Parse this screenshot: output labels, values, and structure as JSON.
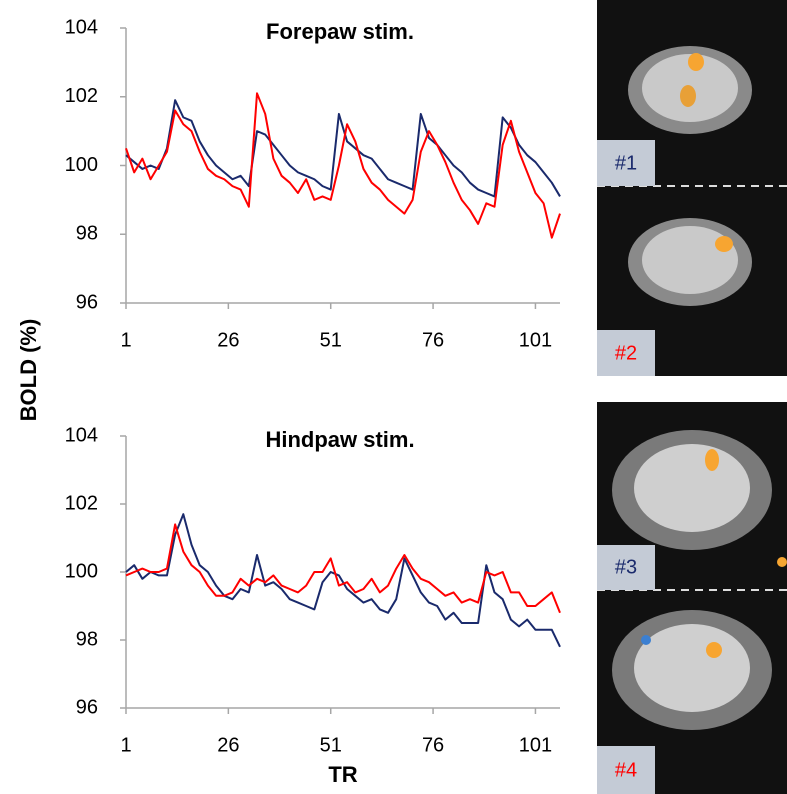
{
  "ylabel": "BOLD (%)",
  "xlabel": "TR",
  "chart_data": [
    {
      "type": "line",
      "title": "Forepaw stim.",
      "x": [
        1,
        3,
        5,
        7,
        9,
        11,
        13,
        15,
        17,
        19,
        21,
        23,
        25,
        27,
        29,
        31,
        33,
        35,
        37,
        39,
        41,
        43,
        45,
        47,
        49,
        51,
        53,
        55,
        57,
        59,
        61,
        63,
        65,
        67,
        69,
        71,
        73,
        75,
        77,
        79,
        81,
        83,
        85,
        87,
        89,
        91,
        93,
        95,
        97,
        99,
        101,
        103,
        105,
        107
      ],
      "series": [
        {
          "color": "#1a2a6c",
          "values": [
            100.3,
            100.1,
            99.9,
            100.0,
            99.9,
            100.5,
            101.9,
            101.4,
            101.3,
            100.7,
            100.3,
            100.0,
            99.8,
            99.6,
            99.7,
            99.4,
            101.0,
            100.9,
            100.6,
            100.3,
            100.0,
            99.8,
            99.7,
            99.6,
            99.4,
            99.3,
            101.5,
            100.7,
            100.5,
            100.3,
            100.2,
            99.9,
            99.6,
            99.5,
            99.4,
            99.3,
            101.5,
            100.8,
            100.6,
            100.3,
            100.0,
            99.8,
            99.5,
            99.3,
            99.2,
            99.1,
            101.4,
            101.1,
            100.6,
            100.3,
            100.1,
            99.8,
            99.5,
            99.1
          ]
        },
        {
          "color": "#ff0000",
          "values": [
            100.5,
            99.8,
            100.2,
            99.6,
            100.0,
            100.4,
            101.6,
            101.2,
            101.0,
            100.4,
            99.9,
            99.7,
            99.6,
            99.4,
            99.3,
            98.8,
            102.1,
            101.5,
            100.2,
            99.7,
            99.5,
            99.2,
            99.6,
            99.0,
            99.1,
            99.0,
            100.0,
            101.2,
            100.7,
            99.9,
            99.5,
            99.3,
            99.0,
            98.8,
            98.6,
            99.0,
            100.4,
            101.0,
            100.6,
            100.1,
            99.5,
            99.0,
            98.7,
            98.3,
            98.9,
            98.8,
            100.6,
            101.3,
            100.4,
            99.8,
            99.2,
            98.9,
            97.9,
            98.6
          ]
        }
      ],
      "xlim": [
        1,
        107
      ],
      "xticks": [
        1,
        26,
        51,
        76,
        101
      ],
      "ylim": [
        96,
        104
      ],
      "yticks": [
        96,
        98,
        100,
        102,
        104
      ]
    },
    {
      "type": "line",
      "title": "Hindpaw stim.",
      "x": [
        1,
        3,
        5,
        7,
        9,
        11,
        13,
        15,
        17,
        19,
        21,
        23,
        25,
        27,
        29,
        31,
        33,
        35,
        37,
        39,
        41,
        43,
        45,
        47,
        49,
        51,
        53,
        55,
        57,
        59,
        61,
        63,
        65,
        67,
        69,
        71,
        73,
        75,
        77,
        79,
        81,
        83,
        85,
        87,
        89,
        91,
        93,
        95,
        97,
        99,
        101,
        103,
        105,
        107
      ],
      "series": [
        {
          "color": "#1a2a6c",
          "values": [
            100.0,
            100.2,
            99.8,
            100.0,
            99.9,
            99.9,
            101.1,
            101.7,
            100.8,
            100.2,
            100.0,
            99.6,
            99.3,
            99.2,
            99.5,
            99.4,
            100.5,
            99.6,
            99.7,
            99.5,
            99.2,
            99.1,
            99.0,
            98.9,
            99.7,
            100.0,
            99.9,
            99.5,
            99.3,
            99.1,
            99.2,
            98.9,
            98.8,
            99.2,
            100.4,
            99.9,
            99.4,
            99.1,
            99.0,
            98.6,
            98.8,
            98.5,
            98.5,
            98.5,
            100.2,
            99.4,
            99.2,
            98.6,
            98.4,
            98.6,
            98.3,
            98.3,
            98.3,
            97.8
          ]
        },
        {
          "color": "#ff0000",
          "values": [
            99.9,
            100.0,
            100.1,
            100.0,
            100.0,
            100.1,
            101.4,
            100.6,
            100.2,
            100.0,
            99.6,
            99.3,
            99.3,
            99.4,
            99.8,
            99.6,
            99.8,
            99.7,
            99.9,
            99.6,
            99.5,
            99.4,
            99.6,
            100.0,
            100.0,
            100.4,
            99.6,
            99.7,
            99.4,
            99.5,
            99.8,
            99.4,
            99.6,
            100.1,
            100.5,
            100.1,
            99.8,
            99.7,
            99.5,
            99.3,
            99.4,
            99.1,
            99.2,
            99.1,
            100.0,
            99.9,
            100.0,
            99.4,
            99.4,
            99.0,
            99.0,
            99.2,
            99.4,
            98.8
          ]
        }
      ],
      "xlim": [
        1,
        107
      ],
      "xticks": [
        1,
        26,
        51,
        76,
        101
      ],
      "ylim": [
        96,
        104
      ],
      "yticks": [
        96,
        98,
        100,
        102,
        104
      ]
    }
  ],
  "images": [
    {
      "label": "#1",
      "color": "#1a2a6c"
    },
    {
      "label": "#2",
      "color": "#ff0000"
    },
    {
      "label": "#3",
      "color": "#1a2a6c"
    },
    {
      "label": "#4",
      "color": "#ff0000"
    }
  ]
}
